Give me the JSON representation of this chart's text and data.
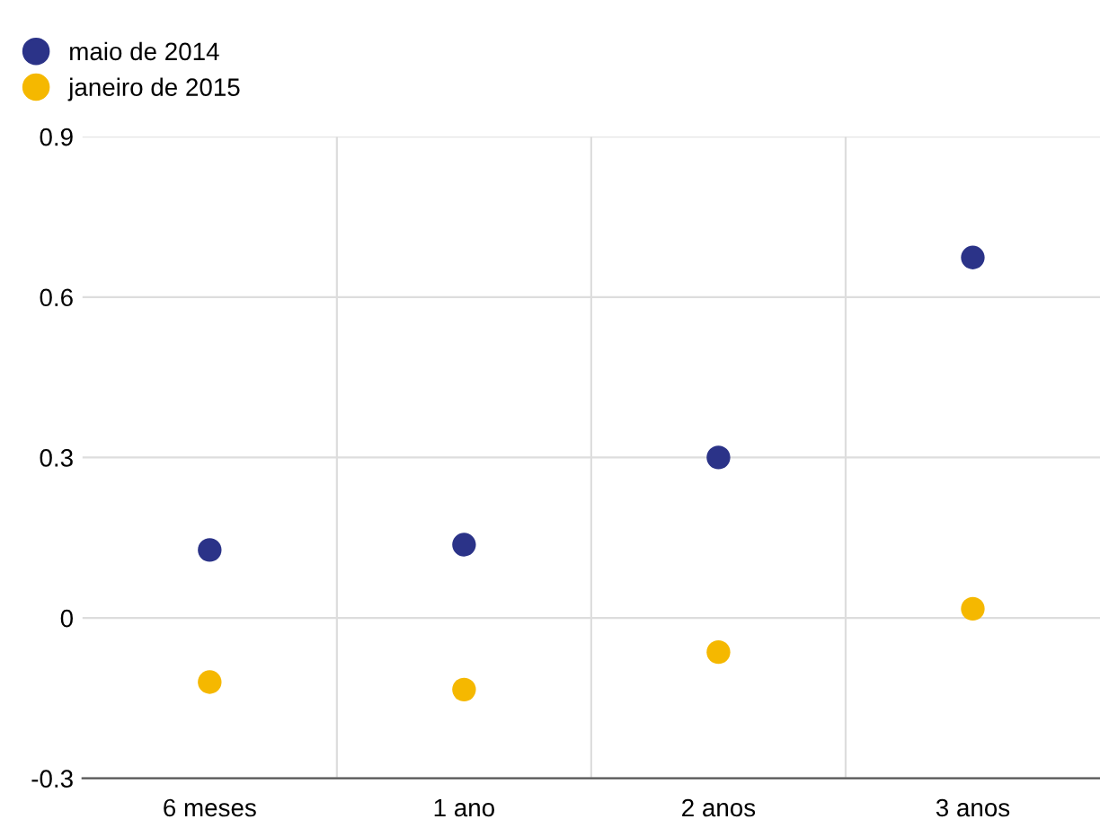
{
  "chart_data": {
    "type": "scatter",
    "categories": [
      "6 meses",
      "1 ano",
      "2 anos",
      "3 anos"
    ],
    "series": [
      {
        "name": "maio de 2014",
        "color": "#2b3388",
        "values": [
          0.127,
          0.137,
          0.3,
          0.674
        ]
      },
      {
        "name": "janeiro de 2015",
        "color": "#f5b800",
        "values": [
          -0.12,
          -0.134,
          -0.064,
          0.017
        ]
      }
    ],
    "ylim": [
      -0.3,
      0.9
    ],
    "yticks": [
      -0.3,
      0,
      0.3,
      0.6,
      0.9
    ],
    "grid": true,
    "legend": "top left",
    "marker": "circle"
  }
}
